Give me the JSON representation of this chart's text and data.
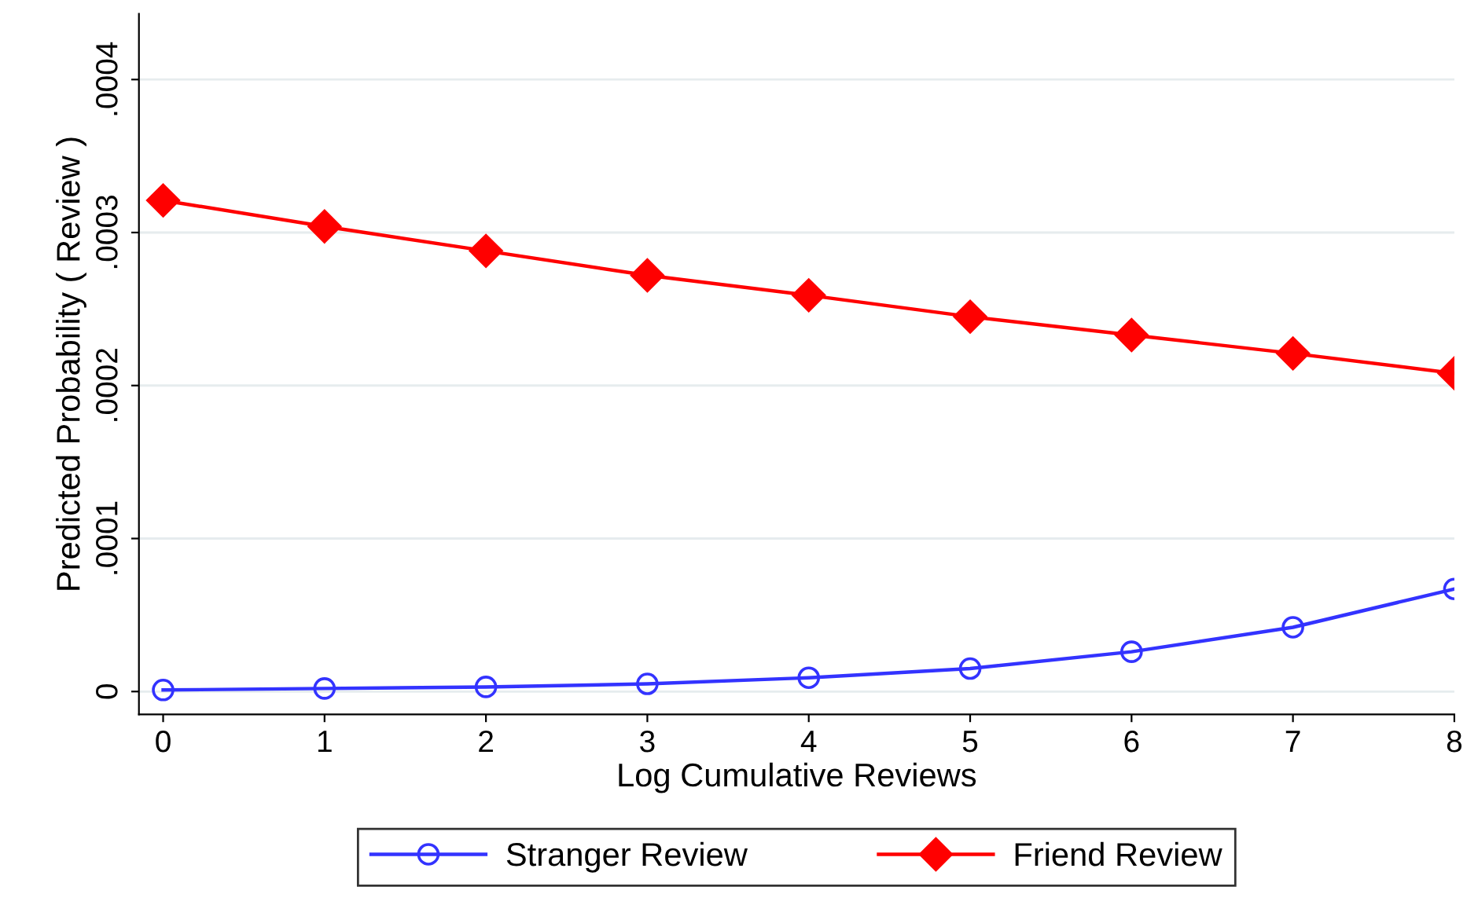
{
  "chart_data": {
    "type": "line",
    "xlabel": "Log Cumulative Reviews",
    "ylabel": "Predicted Probability ( Review )",
    "x": [
      0,
      1,
      2,
      3,
      4,
      5,
      6,
      7,
      8
    ],
    "series": [
      {
        "name": "Stranger Review",
        "color": "#3333ff",
        "marker": "circle",
        "values": [
          1e-06,
          2e-06,
          3e-06,
          5e-06,
          9e-06,
          1.5e-05,
          2.6e-05,
          4.2e-05,
          6.7e-05
        ]
      },
      {
        "name": "Friend Review",
        "color": "#ff0000",
        "marker": "diamond",
        "values": [
          0.000321,
          0.000304,
          0.000288,
          0.000272,
          0.000259,
          0.000245,
          0.000233,
          0.000221,
          0.000208
        ]
      }
    ],
    "xlim": [
      -0.15,
      8
    ],
    "xticks": [
      0,
      1,
      2,
      3,
      4,
      5,
      6,
      7,
      8
    ],
    "ylim": [
      -1.5e-05,
      0.000443
    ],
    "yticks": [
      {
        "value": 0,
        "label": "0"
      },
      {
        "value": 0.0001,
        "label": ".0001"
      },
      {
        "value": 0.0002,
        "label": ".0002"
      },
      {
        "value": 0.0003,
        "label": ".0003"
      },
      {
        "value": 0.0004,
        "label": ".0004"
      }
    ],
    "grid": "y",
    "legend": "bottom"
  }
}
